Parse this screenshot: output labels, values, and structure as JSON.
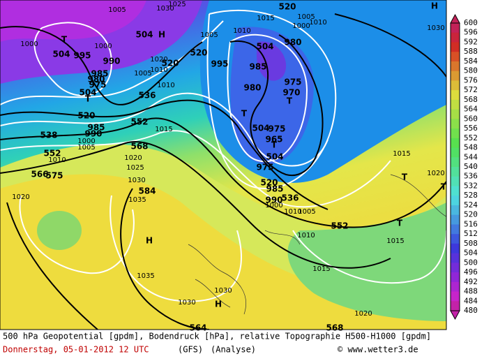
{
  "map": {
    "labels": [
      "1005",
      "1030",
      "1025",
      "520",
      "1015",
      "1005",
      "1010",
      "1000",
      "1030",
      "T",
      "504",
      "H",
      "1000",
      "504",
      "995",
      "1000",
      "990",
      "1020",
      "520",
      "1010",
      "1005",
      "520",
      "1005",
      "1010",
      "995",
      "504",
      "980",
      "985",
      "975",
      "970",
      "T",
      "980",
      "985",
      "980",
      "975",
      "504",
      "T",
      "536",
      "1010",
      "520",
      "552",
      "1015",
      "T",
      "504",
      "975",
      "965",
      "T",
      "504",
      "985",
      "990",
      "1000",
      "538",
      "1005",
      "1015",
      "552",
      "1010",
      "568",
      "1020",
      "1025",
      "975",
      "566",
      "575",
      "1030",
      "T",
      "1020",
      "520",
      "985",
      "536",
      "990",
      "1000",
      "1020",
      "584",
      "1035",
      "1010",
      "1005",
      "552",
      "T",
      "H",
      "1010",
      "1015",
      "1015",
      "1035",
      "1030",
      "1030",
      "H",
      "1020",
      "564",
      "568",
      "H",
      "T"
    ]
  },
  "colorbar": {
    "levels": [
      600,
      596,
      592,
      588,
      584,
      580,
      576,
      572,
      568,
      564,
      560,
      556,
      552,
      548,
      544,
      540,
      536,
      532,
      528,
      524,
      520,
      516,
      512,
      508,
      504,
      500,
      496,
      492,
      488,
      484,
      480
    ]
  },
  "footer": {
    "description": "500 hPa Geopotential [gpdm], Bodendruck [hPa], relative Topographie H500-H1000 [gpdm]",
    "date": "Donnerstag, 05-01-2012  12 UTC",
    "model": "(GFS)",
    "run": "(Analyse)",
    "source": "© www.wetter3.de"
  }
}
